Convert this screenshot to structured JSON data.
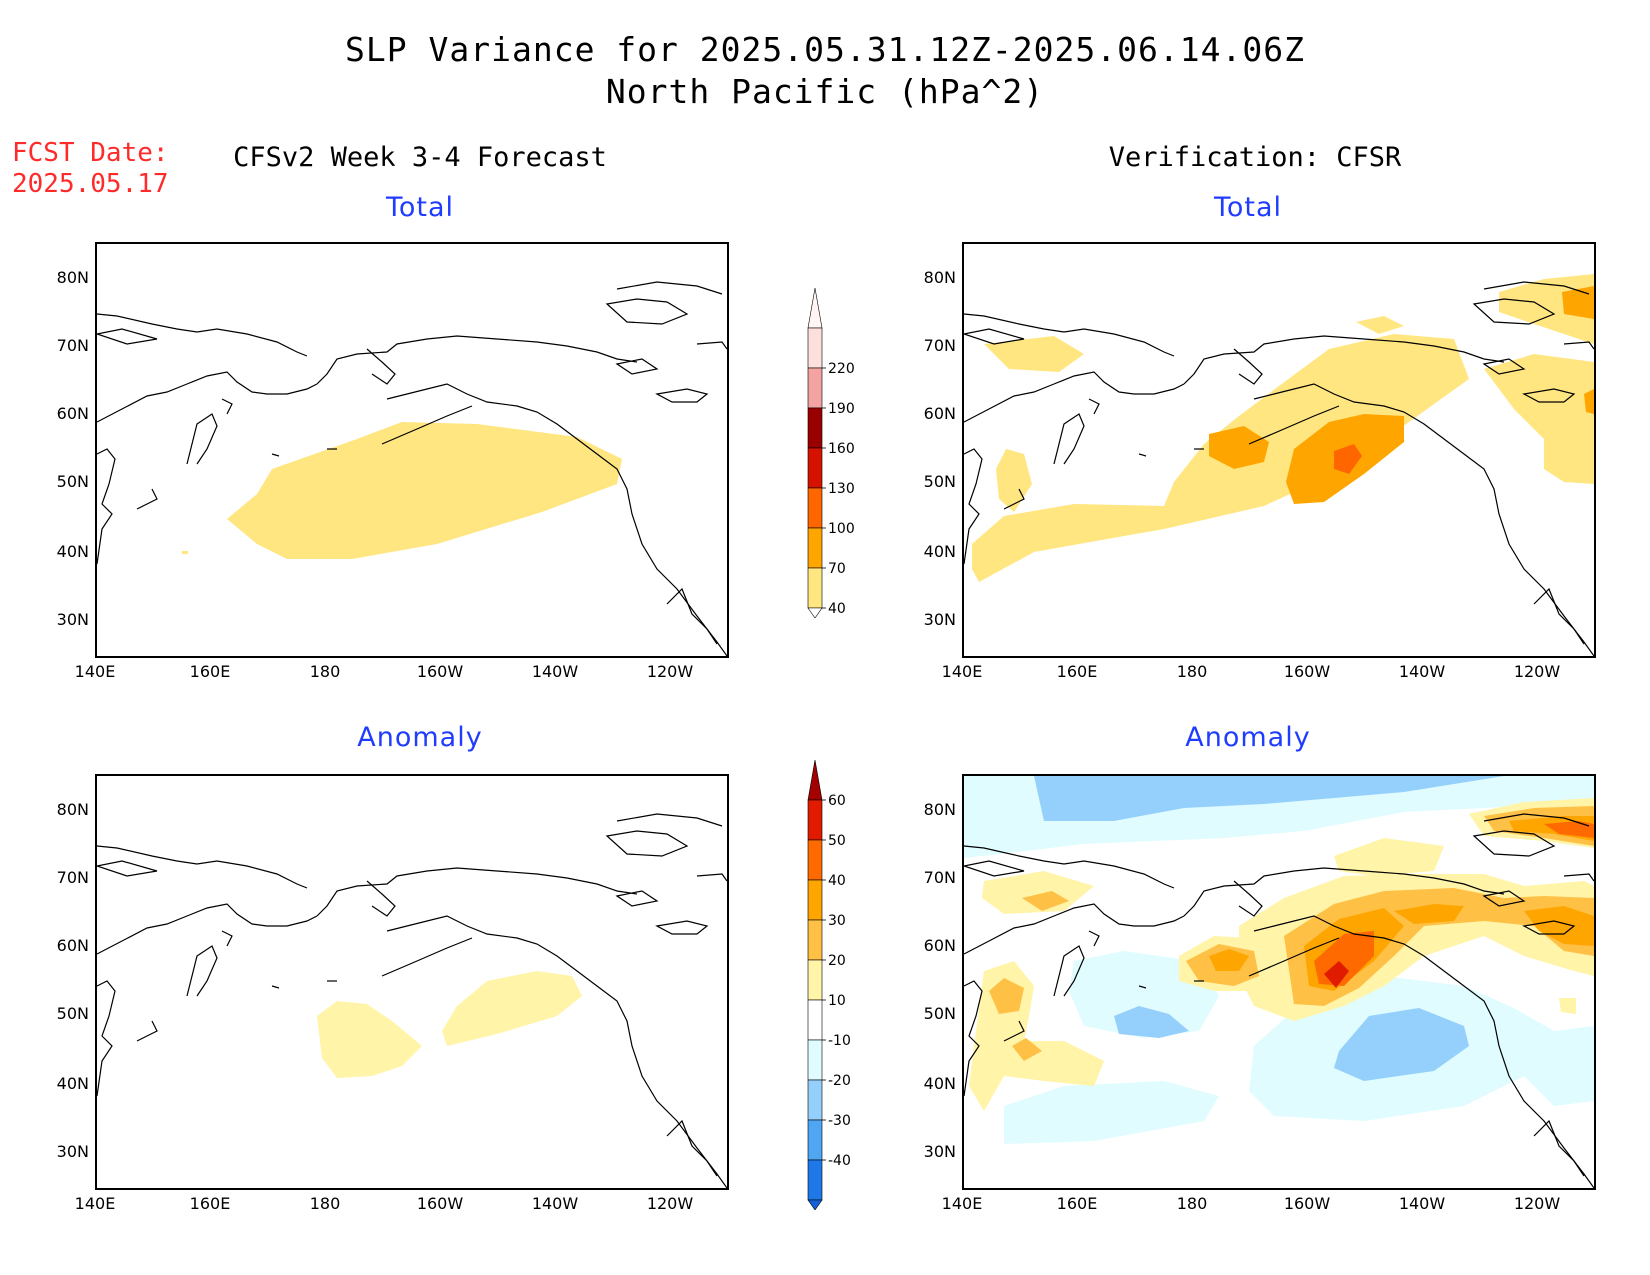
{
  "header": {
    "title": "SLP Variance for 2025.05.31.12Z-2025.06.14.06Z",
    "subtitle": "North Pacific (hPa^2)",
    "fcst_label": "FCST Date:",
    "fcst_date": "2025.05.17",
    "left_column": "CFSv2 Week 3-4 Forecast",
    "right_column": "Verification: CFSR"
  },
  "panels": {
    "top_left": "Total",
    "top_right": "Total",
    "bottom_left": "Anomaly",
    "bottom_right": "Anomaly"
  },
  "axes": {
    "lat_labels": [
      "80N",
      "70N",
      "60N",
      "50N",
      "40N",
      "30N"
    ],
    "lon_labels": [
      "140E",
      "160E",
      "180",
      "160W",
      "140W",
      "120W"
    ]
  },
  "colorbar_total": {
    "labels": [
      "220",
      "190",
      "160",
      "130",
      "100",
      "70",
      "40"
    ],
    "colors": [
      "#fde0dc",
      "#f4a3a3",
      "#9b0000",
      "#d51200",
      "#ff6600",
      "#ffa500",
      "#ffe680"
    ]
  },
  "colorbar_anomaly": {
    "labels": [
      "60",
      "50",
      "40",
      "30",
      "20",
      "10",
      "-10",
      "-20",
      "-30",
      "-40"
    ],
    "colors": [
      "#a30000",
      "#e01b00",
      "#ff6a00",
      "#ffa500",
      "#ffc046",
      "#fff4a8",
      "#ffffff",
      "#e0fcff",
      "#94d0fb",
      "#4fa6f3",
      "#1e78e8",
      "#1460d6"
    ]
  },
  "colors": {
    "title_red": "#ff2a2a",
    "panel_title_blue": "#1f3cff"
  }
}
